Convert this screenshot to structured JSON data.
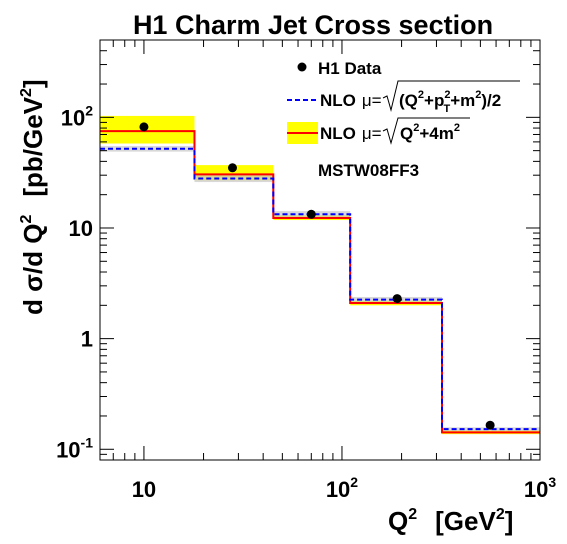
{
  "chart_data": {
    "type": "step",
    "title": "H1 Charm Jet Cross section",
    "xlabel_main": "Q",
    "xlabel_sup": "2",
    "xlabel_unit_open": "[GeV",
    "xlabel_unit_sup": "2",
    "xlabel_unit_close": "]",
    "ylabel": "d σ/d Q",
    "ylabel_sup": "2",
    "yunit_open": "[pb/GeV",
    "yunit_sup": "2",
    "yunit_close": "]",
    "x_scale": "log",
    "y_scale": "log",
    "xlim": [
      6,
      1000
    ],
    "ylim": [
      0.08,
      500
    ],
    "x_ticks": [
      {
        "value": 10,
        "label": "10"
      },
      {
        "value": 100,
        "label": "10",
        "sup": "2"
      },
      {
        "value": 1000,
        "label": "10",
        "sup": "3"
      }
    ],
    "y_ticks": [
      {
        "value": 0.1,
        "label": "10",
        "sup": "-1"
      },
      {
        "value": 1,
        "label": "1"
      },
      {
        "value": 10,
        "label": "10"
      },
      {
        "value": 100,
        "label": "10",
        "sup": "2"
      }
    ],
    "bin_edges": [
      6,
      18,
      45,
      110,
      320,
      1000
    ],
    "data_points": {
      "name": "H1 Data",
      "x": [
        10,
        28,
        70,
        190,
        560
      ],
      "y": [
        82,
        35,
        13.3,
        2.3,
        0.165
      ],
      "color": "#000000"
    },
    "nlo_mu_pt": {
      "name": "NLO",
      "scale_label": "μ=√(Q²+p_T²+m²)/2",
      "values": [
        52,
        28,
        13.3,
        2.25,
        0.152
      ],
      "band_low": [
        49,
        26,
        12.6,
        2.15,
        0.146
      ],
      "band_high": [
        55,
        30,
        14.2,
        2.38,
        0.158
      ],
      "line_color": "#0000ff",
      "band_color": "#c8c8c8"
    },
    "nlo_mu_q": {
      "name": "NLO",
      "scale_label": "μ=√(Q²+4m²)",
      "values": [
        75,
        30.5,
        12.3,
        2.1,
        0.142
      ],
      "band_low": [
        58,
        27,
        11.8,
        2.0,
        0.137
      ],
      "band_high": [
        103,
        37,
        13.0,
        2.2,
        0.148
      ],
      "line_color": "#ff0000",
      "band_color": "#ffff00"
    },
    "annotation": "MSTW08FF3",
    "legend_position": "top-right"
  },
  "legend": {
    "data_label": "H1 Data",
    "nlo1_prefix": "NLO",
    "nlo1_mu": "μ=",
    "nlo1_radicand_a": "(Q",
    "nlo1_sup_a": "2",
    "nlo1_radicand_b": "+p",
    "nlo1_sup_b": "2",
    "nlo1_sub_b": "T",
    "nlo1_radicand_c": "+m",
    "nlo1_sup_c": "2",
    "nlo1_radicand_d": ")/2",
    "nlo2_prefix": "NLO",
    "nlo2_mu": "μ=",
    "nlo2_radicand_a": "Q",
    "nlo2_sup_a": "2",
    "nlo2_radicand_b": "+4m",
    "nlo2_sup_b": "2"
  }
}
